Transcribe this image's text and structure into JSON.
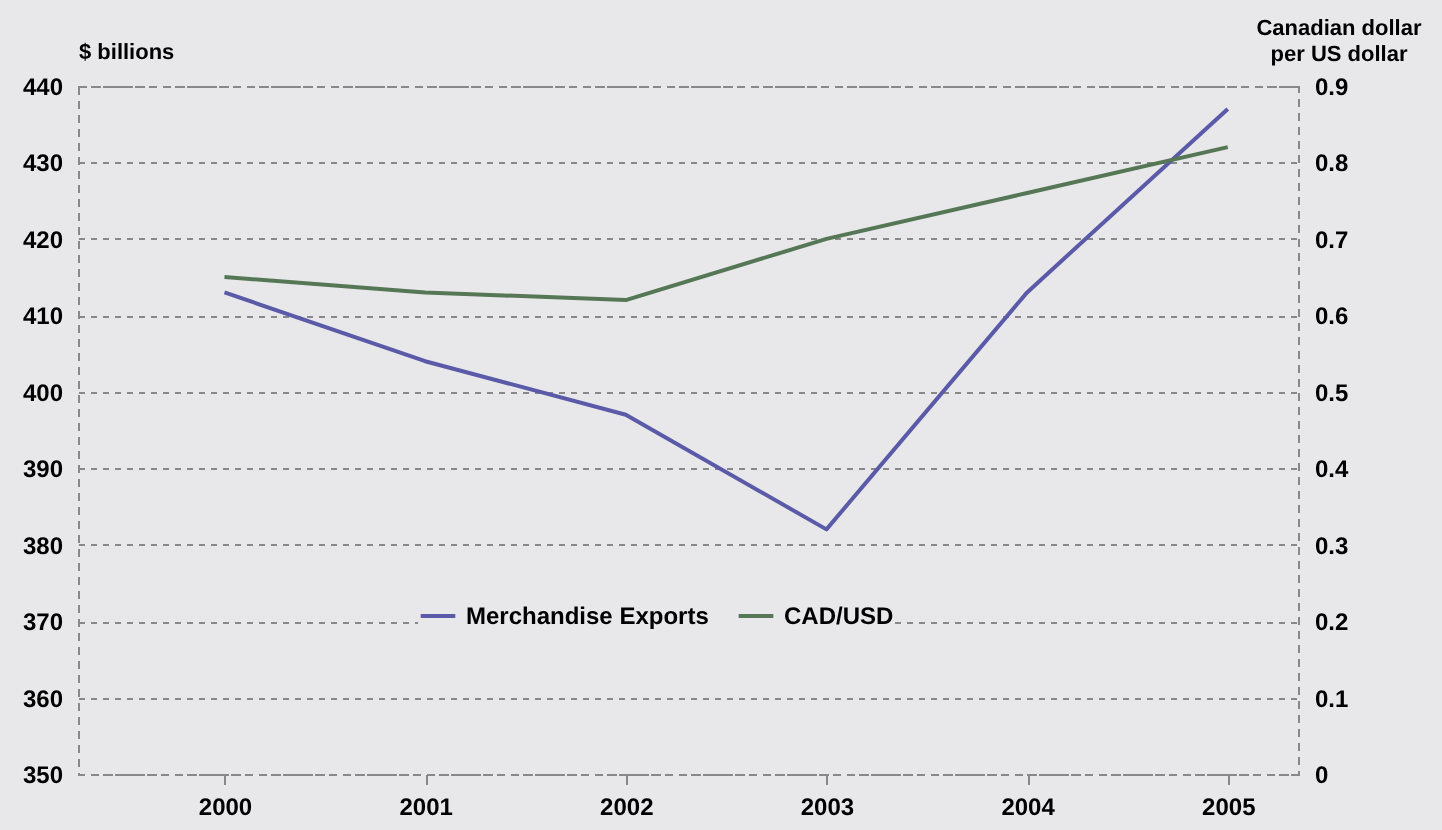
{
  "chart_data": {
    "type": "line",
    "categories": [
      "2000",
      "2001",
      "2002",
      "2003",
      "2004",
      "2005"
    ],
    "ylabel": "$ billions",
    "y2label": "Canadian dollar per US dollar",
    "ylim": [
      350,
      440
    ],
    "yticks": [
      350,
      360,
      370,
      380,
      390,
      400,
      410,
      420,
      430,
      440
    ],
    "y2lim": [
      0,
      0.9
    ],
    "y2ticks": [
      0,
      0.1,
      0.2,
      0.3,
      0.4,
      0.5,
      0.6,
      0.7,
      0.8,
      0.9
    ],
    "series": [
      {
        "name": "Merchandise Exports",
        "color": "#5a5aa8",
        "values": [
          413,
          404,
          397,
          382,
          413,
          437
        ]
      },
      {
        "name": "CAD/USD",
        "color": "#557755",
        "axis": "y2",
        "values": [
          0.65,
          0.63,
          0.62,
          0.7,
          0.76,
          0.82
        ]
      }
    ],
    "grid": "y",
    "legend": "bottom",
    "line_style": "solid",
    "marker": "none"
  }
}
